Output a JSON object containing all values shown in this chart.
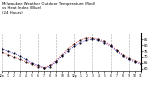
{
  "title": "Milwaukee Weather Outdoor Temperature (Red)\nvs Heat Index (Blue)\n(24 Hours)",
  "title_fontsize": 2.8,
  "background_color": "#ffffff",
  "grid_color": "#aaaaaa",
  "hours": [
    0,
    1,
    2,
    3,
    4,
    5,
    6,
    7,
    8,
    9,
    10,
    11,
    12,
    13,
    14,
    15,
    16,
    17,
    18,
    19,
    20,
    21,
    22,
    23
  ],
  "temp_red": [
    74,
    72,
    70,
    68,
    66,
    64,
    62,
    61,
    63,
    67,
    72,
    77,
    81,
    84,
    86,
    86,
    85,
    83,
    80,
    76,
    72,
    69,
    67,
    65
  ],
  "heat_blue": [
    77,
    75,
    73,
    71,
    68,
    65,
    63,
    61,
    62,
    66,
    71,
    75,
    79,
    82,
    84,
    85,
    84,
    82,
    79,
    75,
    71,
    68,
    66,
    64
  ],
  "xlim": [
    0,
    23
  ],
  "ylim": [
    58,
    90
  ],
  "ytick_vals": [
    60,
    65,
    70,
    75,
    80,
    85
  ],
  "ytick_labels": [
    "60",
    "65",
    "70",
    "75",
    "80",
    "85"
  ],
  "xtick_pos": [
    0,
    1,
    2,
    3,
    4,
    5,
    6,
    7,
    8,
    9,
    10,
    11,
    12,
    13,
    14,
    15,
    16,
    17,
    18,
    19,
    20,
    21,
    22,
    23
  ],
  "xtick_labels": [
    "12a",
    "1",
    "2",
    "3",
    "4",
    "5",
    "6",
    "7",
    "8",
    "9",
    "10",
    "11",
    "12p",
    "1",
    "2",
    "3",
    "4",
    "5",
    "6",
    "7",
    "8",
    "9",
    "10",
    "11"
  ],
  "vgrid_pos": [
    0,
    3,
    6,
    9,
    12,
    15,
    18,
    21,
    23
  ],
  "red_color": "#cc0000",
  "blue_color": "#0000cc",
  "black_color": "#000000",
  "line_width": 0.6,
  "marker_size": 1.2,
  "black_marker_size": 1.0
}
